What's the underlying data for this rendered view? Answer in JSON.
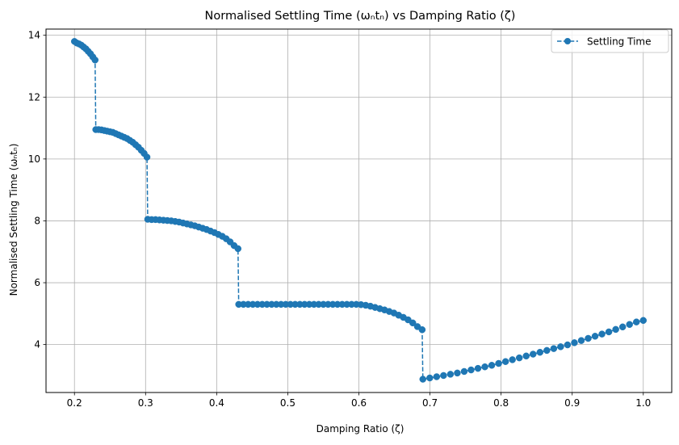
{
  "chart_data": {
    "type": "line",
    "title": "Normalised Settling Time (ωₙtₙ) vs Damping Ratio (ζ)",
    "xlabel": "Damping Ratio (ζ)",
    "ylabel": "Normalised Settling Time (ωₙtₙ)",
    "xlim": [
      0.16,
      1.04
    ],
    "ylim": [
      2.45,
      14.2
    ],
    "xticks": [
      0.2,
      0.3,
      0.4,
      0.5,
      0.6,
      0.7,
      0.8,
      0.9,
      1.0
    ],
    "xtick_labels": [
      "0.2",
      "0.3",
      "0.4",
      "0.5",
      "0.6",
      "0.7",
      "0.8",
      "0.9",
      "1.0"
    ],
    "yticks": [
      4,
      6,
      8,
      10,
      12,
      14
    ],
    "ytick_labels": [
      "4",
      "6",
      "8",
      "10",
      "12",
      "14"
    ],
    "grid": true,
    "legend_position": "top-right",
    "series": [
      {
        "name": "Settling Time",
        "color": "#1f77b4",
        "line_style": "dashed",
        "marker": "circle",
        "segments": [
          {
            "x_start": 0.2,
            "x_end": 0.229,
            "y": [
              13.8,
              13.75,
              13.72,
              13.68,
              13.62,
              13.56,
              13.48,
              13.4,
              13.3,
              13.2
            ]
          },
          {
            "x_start": 0.23,
            "x_end": 0.302,
            "y": [
              10.95,
              10.95,
              10.94,
              10.92,
              10.9,
              10.88,
              10.86,
              10.82,
              10.78,
              10.74,
              10.7,
              10.66,
              10.6,
              10.54,
              10.46,
              10.38,
              10.28,
              10.18,
              10.06
            ]
          },
          {
            "x_start": 0.303,
            "x_end": 0.43,
            "y": [
              8.05,
              8.04,
              8.04,
              8.03,
              8.02,
              8.01,
              8.0,
              7.98,
              7.96,
              7.93,
              7.9,
              7.87,
              7.84,
              7.8,
              7.76,
              7.72,
              7.67,
              7.62,
              7.56,
              7.5,
              7.42,
              7.32,
              7.2,
              7.1
            ]
          },
          {
            "x_start": 0.431,
            "x_end": 0.689,
            "y": [
              5.3,
              5.3,
              5.3,
              5.3,
              5.3,
              5.3,
              5.3,
              5.3,
              5.3,
              5.3,
              5.3,
              5.3,
              5.3,
              5.3,
              5.3,
              5.3,
              5.3,
              5.3,
              5.3,
              5.3,
              5.3,
              5.3,
              5.3,
              5.3,
              5.3,
              5.3,
              5.29,
              5.27,
              5.24,
              5.2,
              5.16,
              5.12,
              5.07,
              5.02,
              4.95,
              4.88,
              4.8,
              4.7,
              4.58,
              4.48
            ]
          },
          {
            "x_start": 0.69,
            "x_end": 1.0,
            "y": [
              2.88,
              2.92,
              2.96,
              3.0,
              3.04,
              3.08,
              3.13,
              3.18,
              3.23,
              3.28,
              3.33,
              3.39,
              3.45,
              3.51,
              3.57,
              3.63,
              3.69,
              3.75,
              3.81,
              3.87,
              3.93,
              3.99,
              4.06,
              4.13,
              4.2,
              4.27,
              4.34,
              4.41,
              4.49,
              4.57,
              4.65,
              4.73,
              4.78
            ]
          }
        ]
      }
    ]
  }
}
